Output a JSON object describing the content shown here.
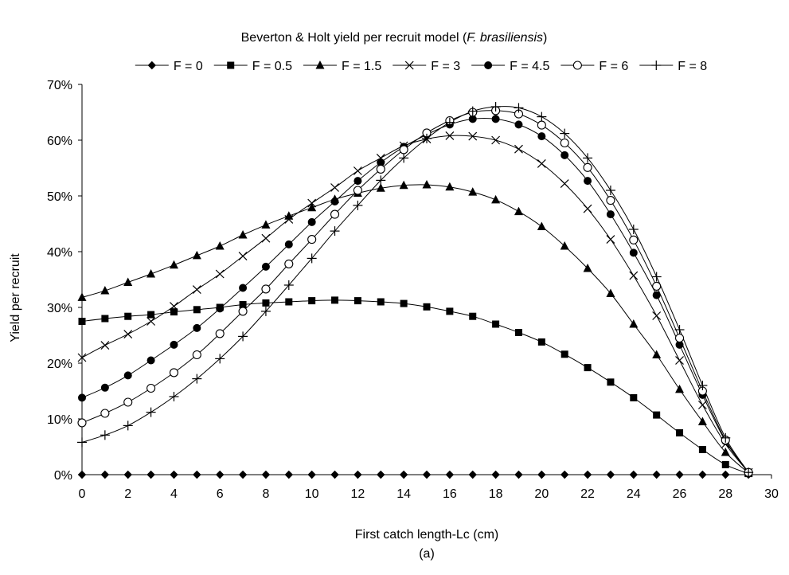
{
  "chart_data": {
    "type": "line",
    "title": "Beverton & Holt yield per recruit model (",
    "title_species": "F. brasiliensis",
    "title_end": ")",
    "xlabel": "First catch length-Lc (cm)",
    "ylabel": "Yield per recruit",
    "caption": "(a)",
    "xlim": [
      0,
      30
    ],
    "ylim": [
      0,
      0.7
    ],
    "x_ticks": [
      "0",
      "2",
      "4",
      "6",
      "8",
      "10",
      "12",
      "14",
      "16",
      "18",
      "20",
      "22",
      "24",
      "26",
      "28",
      "30"
    ],
    "y_ticks": [
      "0%",
      "10%",
      "20%",
      "30%",
      "40%",
      "50%",
      "60%",
      "70%"
    ],
    "grid": false,
    "legend_position": "top",
    "x": [
      0,
      1,
      2,
      3,
      4,
      5,
      6,
      7,
      8,
      9,
      10,
      11,
      12,
      13,
      14,
      15,
      16,
      17,
      18,
      19,
      20,
      21,
      22,
      23,
      24,
      25,
      26,
      27,
      28,
      29
    ],
    "series": [
      {
        "name": "F = 0",
        "marker": "diamond",
        "values": [
          0,
          0,
          0,
          0,
          0,
          0,
          0,
          0,
          0,
          0,
          0,
          0,
          0,
          0,
          0,
          0,
          0,
          0,
          0,
          0,
          0,
          0,
          0,
          0,
          0,
          0,
          0,
          0,
          0,
          0
        ]
      },
      {
        "name": "F = 0.5",
        "marker": "square",
        "values": [
          0.275,
          0.28,
          0.284,
          0.287,
          0.292,
          0.296,
          0.3,
          0.305,
          0.308,
          0.31,
          0.312,
          0.313,
          0.312,
          0.31,
          0.307,
          0.301,
          0.293,
          0.284,
          0.27,
          0.255,
          0.238,
          0.216,
          0.192,
          0.166,
          0.138,
          0.107,
          0.075,
          0.045,
          0.018,
          0.002
        ]
      },
      {
        "name": "F = 1.5",
        "marker": "triangle",
        "values": [
          0.318,
          0.33,
          0.345,
          0.36,
          0.376,
          0.393,
          0.41,
          0.43,
          0.448,
          0.464,
          0.479,
          0.494,
          0.505,
          0.514,
          0.519,
          0.52,
          0.516,
          0.507,
          0.493,
          0.472,
          0.445,
          0.41,
          0.37,
          0.325,
          0.27,
          0.215,
          0.153,
          0.095,
          0.04,
          0.003
        ]
      },
      {
        "name": "F = 3",
        "marker": "cross",
        "values": [
          0.21,
          0.232,
          0.252,
          0.275,
          0.302,
          0.332,
          0.36,
          0.392,
          0.424,
          0.458,
          0.487,
          0.515,
          0.545,
          0.568,
          0.59,
          0.602,
          0.608,
          0.607,
          0.6,
          0.584,
          0.558,
          0.522,
          0.477,
          0.422,
          0.357,
          0.285,
          0.205,
          0.125,
          0.055,
          0.004
        ]
      },
      {
        "name": "F = 4.5",
        "marker": "circle-filled",
        "values": [
          0.138,
          0.156,
          0.178,
          0.205,
          0.233,
          0.263,
          0.298,
          0.335,
          0.373,
          0.413,
          0.453,
          0.49,
          0.527,
          0.56,
          0.588,
          0.61,
          0.628,
          0.638,
          0.638,
          0.628,
          0.607,
          0.573,
          0.527,
          0.467,
          0.398,
          0.322,
          0.233,
          0.143,
          0.06,
          0.004
        ]
      },
      {
        "name": "F = 6",
        "marker": "circle-open",
        "values": [
          0.093,
          0.11,
          0.13,
          0.155,
          0.183,
          0.215,
          0.253,
          0.293,
          0.333,
          0.378,
          0.422,
          0.467,
          0.51,
          0.548,
          0.583,
          0.613,
          0.635,
          0.65,
          0.653,
          0.647,
          0.627,
          0.595,
          0.551,
          0.492,
          0.421,
          0.338,
          0.245,
          0.15,
          0.062,
          0.004
        ]
      },
      {
        "name": "F = 8",
        "marker": "plus",
        "values": [
          0.058,
          0.071,
          0.088,
          0.112,
          0.14,
          0.172,
          0.208,
          0.248,
          0.293,
          0.34,
          0.388,
          0.437,
          0.483,
          0.528,
          0.568,
          0.603,
          0.632,
          0.652,
          0.66,
          0.658,
          0.642,
          0.612,
          0.568,
          0.51,
          0.44,
          0.355,
          0.26,
          0.16,
          0.066,
          0.004
        ]
      }
    ]
  }
}
